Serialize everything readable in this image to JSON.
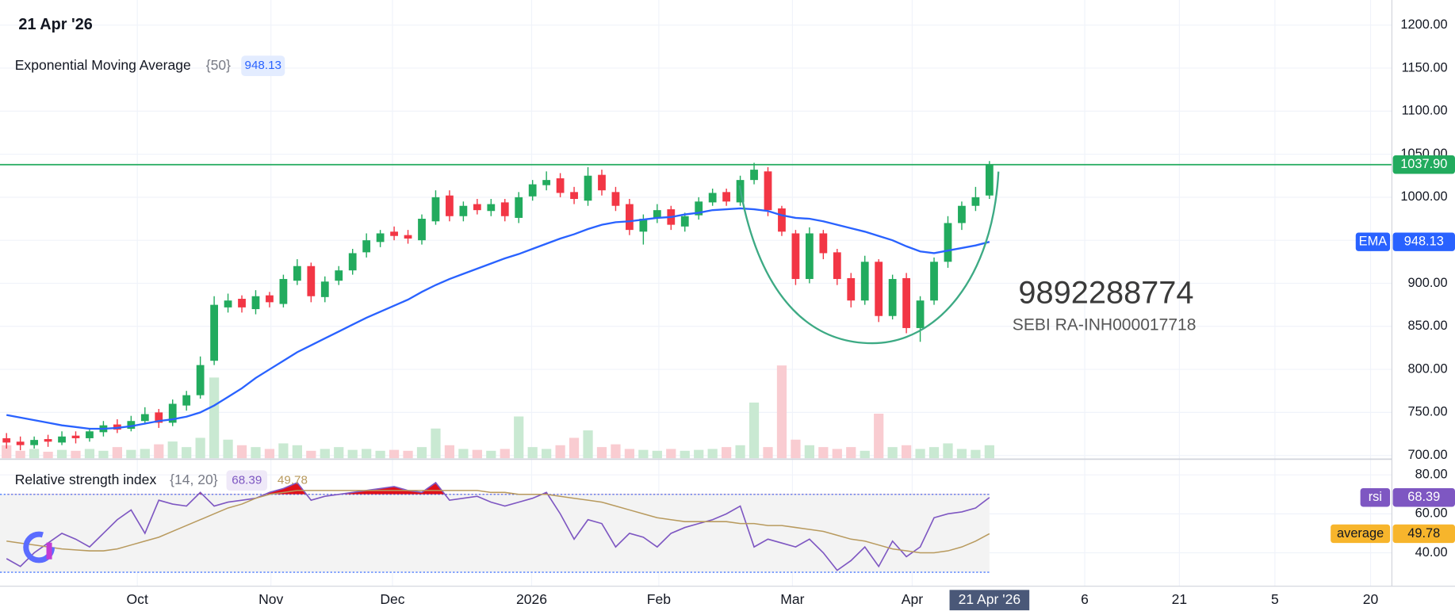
{
  "chart_data": [
    {
      "type": "candlestick",
      "date": "21 Apr '26",
      "indicator": {
        "name": "Exponential Moving Average",
        "params": "{50}",
        "tag": "EMA",
        "color": "#2962ff",
        "values": [
          747,
          744,
          741,
          738,
          735,
          733,
          731,
          731,
          732,
          734,
          737,
          740,
          742,
          745,
          750,
          758,
          768,
          778,
          790,
          800,
          810,
          820,
          828,
          836,
          844,
          852,
          860,
          867,
          874,
          881,
          890,
          898,
          905,
          911,
          917,
          923,
          929,
          934,
          940,
          946,
          952,
          957,
          963,
          968,
          971,
          972,
          974,
          976,
          977,
          980,
          982,
          985,
          986,
          987,
          986,
          984,
          979,
          976,
          975,
          972,
          968,
          964,
          960,
          955,
          950,
          943,
          937,
          935,
          938,
          941,
          944,
          948.13
        ]
      },
      "open": [
        720,
        716,
        712,
        719,
        715,
        723,
        720,
        727,
        736,
        731,
        740,
        750,
        738,
        758,
        770,
        810,
        872,
        882,
        870,
        886,
        876,
        903,
        920,
        884,
        903,
        915,
        936,
        948,
        960,
        956,
        950,
        972,
        1002,
        978,
        992,
        984,
        994,
        976,
        1001,
        1014,
        1022,
        1006,
        996,
        1026,
        1006,
        992,
        960,
        976,
        986,
        966,
        979,
        994,
        1006,
        994,
        1020,
        1030,
        987,
        958,
        905,
        958,
        936,
        906,
        880,
        925,
        862,
        906,
        848,
        880,
        925,
        970,
        990,
        1002
      ],
      "high": [
        726,
        722,
        722,
        724,
        728,
        728,
        732,
        740,
        742,
        746,
        756,
        754,
        765,
        775,
        815,
        885,
        888,
        886,
        892,
        890,
        910,
        928,
        924,
        908,
        920,
        940,
        958,
        962,
        966,
        962,
        980,
        1008,
        1008,
        995,
        998,
        998,
        998,
        1006,
        1020,
        1030,
        1028,
        1012,
        1035,
        1032,
        1012,
        998,
        980,
        992,
        990,
        982,
        1000,
        1010,
        1010,
        1025,
        1040,
        1035,
        990,
        962,
        965,
        962,
        940,
        912,
        932,
        928,
        910,
        912,
        885,
        930,
        978,
        995,
        1012,
        1042
      ],
      "low": [
        708,
        706,
        708,
        710,
        712,
        714,
        716,
        722,
        726,
        728,
        736,
        732,
        734,
        752,
        766,
        805,
        866,
        866,
        864,
        872,
        872,
        898,
        878,
        878,
        898,
        910,
        930,
        942,
        950,
        946,
        945,
        968,
        972,
        972,
        980,
        978,
        972,
        970,
        996,
        1008,
        1000,
        992,
        990,
        1002,
        984,
        956,
        945,
        970,
        962,
        960,
        974,
        990,
        990,
        990,
        1015,
        978,
        955,
        898,
        900,
        928,
        898,
        872,
        875,
        855,
        858,
        842,
        832,
        875,
        918,
        962,
        984,
        998
      ],
      "close": [
        715,
        712,
        718,
        716,
        722,
        720,
        728,
        735,
        730,
        740,
        748,
        738,
        760,
        770,
        805,
        875,
        880,
        872,
        885,
        878,
        905,
        920,
        885,
        902,
        915,
        935,
        950,
        958,
        955,
        952,
        975,
        1000,
        978,
        990,
        985,
        992,
        978,
        1000,
        1015,
        1020,
        1005,
        998,
        1025,
        1008,
        990,
        962,
        975,
        985,
        968,
        978,
        995,
        1005,
        995,
        1020,
        1032,
        985,
        960,
        905,
        958,
        935,
        905,
        880,
        925,
        862,
        905,
        848,
        880,
        925,
        970,
        990,
        1000,
        1037.9
      ],
      "volume": [
        14,
        8,
        10,
        7,
        9,
        8,
        10,
        8,
        12,
        9,
        10,
        15,
        18,
        12,
        22,
        87,
        20,
        14,
        12,
        10,
        16,
        14,
        8,
        10,
        12,
        9,
        10,
        8,
        9,
        8,
        12,
        32,
        14,
        10,
        9,
        8,
        10,
        45,
        12,
        10,
        14,
        22,
        30,
        12,
        15,
        10,
        9,
        8,
        10,
        8,
        9,
        10,
        12,
        14,
        60,
        12,
        100,
        20,
        14,
        12,
        10,
        12,
        8,
        48,
        12,
        14,
        10,
        12,
        16,
        10,
        9,
        14
      ],
      "up_color": "#22ab5e",
      "down_color": "#f23645",
      "volume_up_color": "#c9e9d2",
      "volume_down_color": "#f9ccd1",
      "last_price": {
        "value": 1037.9,
        "label": "1037.90"
      },
      "ylim": [
        695.7,
        1229.1
      ],
      "yticks": [
        {
          "value": 700,
          "label": "700.00"
        },
        {
          "value": 750,
          "label": "750.00"
        },
        {
          "value": 800,
          "label": "800.00"
        },
        {
          "value": 850,
          "label": "850.00"
        },
        {
          "value": 900,
          "label": "900.00"
        },
        {
          "value": 950,
          "label": "950.00"
        },
        {
          "value": 1000,
          "label": "1000.00"
        },
        {
          "value": 1050,
          "label": "1050.00"
        },
        {
          "value": 1100,
          "label": "1100.00"
        },
        {
          "value": 1150,
          "label": "1150.00"
        },
        {
          "value": 1200,
          "label": "1200.00"
        }
      ],
      "xlim": [
        -0.47,
        100.07
      ],
      "xticks": [
        {
          "value": 9.45,
          "label": "Oct"
        },
        {
          "value": 19.1,
          "label": "Nov"
        },
        {
          "value": 27.88,
          "label": "Dec"
        },
        {
          "value": 37.93,
          "label": "2026"
        },
        {
          "value": 47.12,
          "label": "Feb"
        },
        {
          "value": 56.77,
          "label": "Mar"
        },
        {
          "value": 65.42,
          "label": "Apr"
        },
        {
          "value": 77.88,
          "label": "6"
        },
        {
          "value": 84.72,
          "label": "21"
        },
        {
          "value": 91.62,
          "label": "5"
        },
        {
          "value": 98.53,
          "label": "20"
        }
      ],
      "grid": true,
      "watermark": {
        "phone": "9892288774",
        "registration": "SEBI RA-INH000017718"
      }
    },
    {
      "type": "rsi",
      "name": "Relative strength index",
      "params": "{14, 20}",
      "series": [
        {
          "name": "rsi",
          "color": "#7e57c2",
          "values": [
            37,
            33,
            40,
            45,
            50,
            47,
            43,
            50,
            57,
            62,
            50,
            67,
            65,
            64,
            71,
            64,
            66,
            67,
            68,
            71,
            73,
            76,
            67,
            69,
            70,
            71,
            72,
            73,
            74,
            72,
            71,
            76,
            67,
            68,
            69,
            66,
            64,
            66,
            68,
            71,
            60,
            47,
            57,
            55,
            43,
            50,
            48,
            43,
            50,
            53,
            55,
            57,
            60,
            64,
            43,
            47,
            45,
            43,
            47,
            40,
            31,
            36,
            43,
            33,
            46,
            38,
            43,
            58,
            60,
            61,
            63,
            68.39
          ]
        },
        {
          "name": "average",
          "color": "#b89a5e",
          "tag_color": "#f7b52c",
          "values": [
            46,
            45,
            44,
            43,
            42,
            41.5,
            41,
            41,
            42,
            44,
            46,
            48,
            51,
            54,
            57,
            60,
            63,
            65,
            68,
            70,
            71,
            72,
            72,
            72,
            72,
            72,
            72,
            72,
            72,
            72,
            72,
            72,
            72,
            72,
            72,
            71,
            71,
            70,
            70,
            70,
            69,
            68,
            67,
            66,
            64,
            62,
            60,
            58,
            57,
            56,
            56,
            56,
            56,
            55,
            55,
            54,
            54,
            53,
            52,
            51,
            49,
            47,
            46,
            44,
            42,
            41,
            40,
            40,
            41,
            43,
            46,
            49.78
          ]
        }
      ],
      "overbought_color": "#e0101a",
      "bands": [
        30,
        70
      ],
      "ylim": [
        23.8,
        85.7
      ],
      "yticks": [
        {
          "value": 40,
          "label": "40.00"
        },
        {
          "value": 60,
          "label": "60.00"
        },
        {
          "value": 80,
          "label": "80.00"
        }
      ]
    }
  ]
}
